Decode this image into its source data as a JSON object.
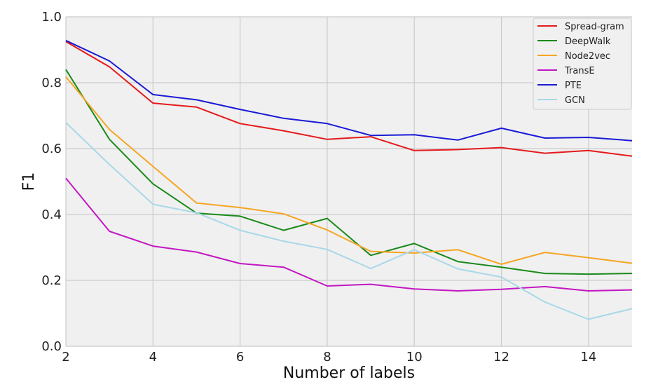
{
  "chart_data": {
    "type": "line",
    "title": "",
    "xlabel": "Number of labels",
    "ylabel": "F1",
    "xlim": [
      2,
      15
    ],
    "ylim": [
      0.0,
      1.0
    ],
    "xticks": [
      "2",
      "4",
      "6",
      "8",
      "10",
      "12",
      "14"
    ],
    "xtick_values": [
      2,
      4,
      6,
      8,
      10,
      12,
      14
    ],
    "yticks": [
      "0.0",
      "0.2",
      "0.4",
      "0.6",
      "0.8",
      "1.0"
    ],
    "ytick_values": [
      0.0,
      0.2,
      0.4,
      0.6,
      0.8,
      1.0
    ],
    "grid": true,
    "legend_position": "top-right",
    "x": [
      2,
      3,
      4,
      5,
      6,
      7,
      8,
      9,
      10,
      11,
      12,
      13,
      14,
      15
    ],
    "series": [
      {
        "name": "Spread-gram",
        "color": "#e41a1c",
        "values": [
          0.925,
          0.848,
          0.738,
          0.726,
          0.676,
          0.654,
          0.628,
          0.636,
          0.594,
          0.597,
          0.603,
          0.586,
          0.594,
          0.577
        ]
      },
      {
        "name": "DeepWalk",
        "color": "#1a8a1a",
        "values": [
          0.84,
          0.628,
          0.493,
          0.404,
          0.395,
          0.352,
          0.388,
          0.276,
          0.312,
          0.257,
          0.24,
          0.221,
          0.219,
          0.221
        ]
      },
      {
        "name": "Node2vec",
        "color": "#f5a623",
        "values": [
          0.818,
          0.658,
          0.546,
          0.435,
          0.421,
          0.402,
          0.353,
          0.288,
          0.283,
          0.293,
          0.249,
          0.285,
          0.269,
          0.252
        ]
      },
      {
        "name": "TransE",
        "color": "#c217c2",
        "values": [
          0.51,
          0.349,
          0.304,
          0.286,
          0.251,
          0.24,
          0.183,
          0.188,
          0.174,
          0.168,
          0.173,
          0.181,
          0.168,
          0.171
        ]
      },
      {
        "name": "PTE",
        "color": "#1a1ad6",
        "values": [
          0.928,
          0.866,
          0.764,
          0.748,
          0.719,
          0.692,
          0.676,
          0.64,
          0.642,
          0.626,
          0.662,
          0.632,
          0.634,
          0.624
        ]
      },
      {
        "name": "GCN",
        "color": "#a8d8e8",
        "values": [
          0.679,
          0.552,
          0.431,
          0.405,
          0.352,
          0.319,
          0.294,
          0.236,
          0.293,
          0.235,
          0.21,
          0.134,
          0.082,
          0.114
        ]
      }
    ]
  }
}
